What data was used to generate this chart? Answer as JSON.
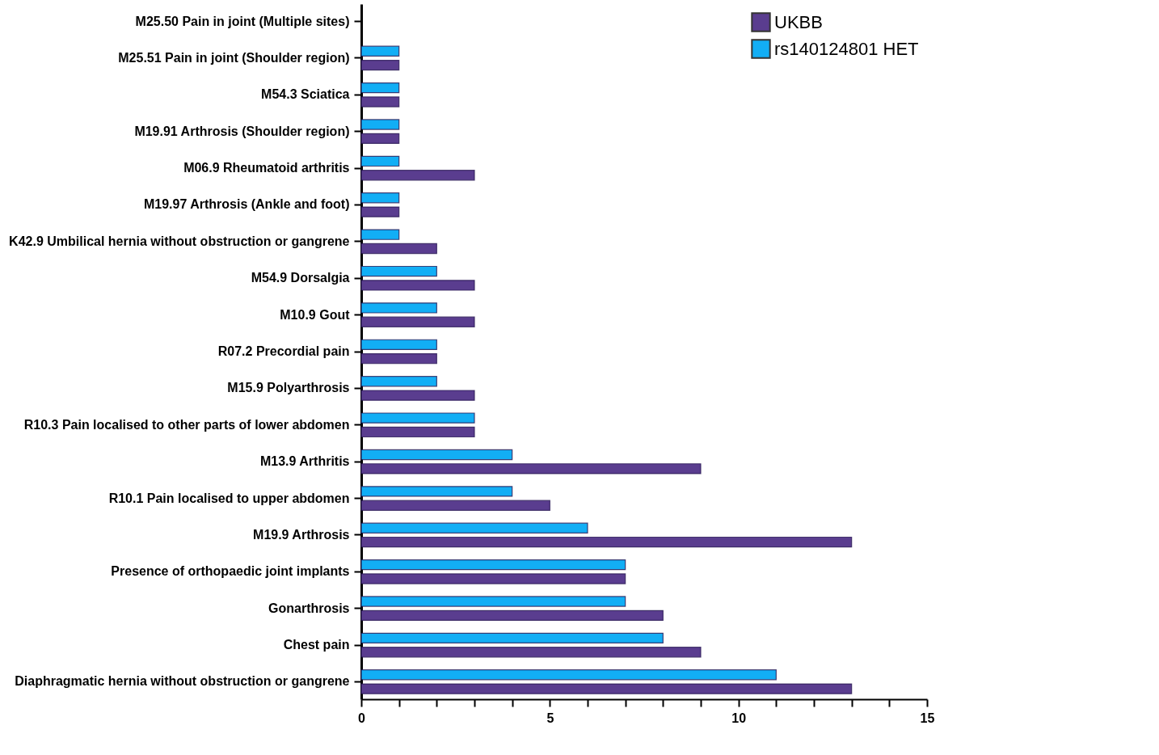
{
  "chart_data": {
    "type": "bar",
    "orientation": "horizontal",
    "categories": [
      "M25.50 Pain in joint (Multiple sites)",
      "M25.51 Pain in joint (Shoulder region)",
      "M54.3 Sciatica",
      "M19.91 Arthrosis (Shoulder region)",
      "M06.9 Rheumatoid arthritis",
      "M19.97 Arthrosis (Ankle and foot)",
      "K42.9 Umbilical hernia without obstruction or gangrene",
      "M54.9 Dorsalgia",
      "M10.9 Gout",
      "R07.2 Precordial pain",
      "M15.9 Polyarthrosis",
      "R10.3 Pain localised to other parts of lower abdomen",
      "M13.9 Arthritis",
      "R10.1 Pain localised to upper abdomen",
      "M19.9 Arthrosis",
      "Presence of orthopaedic joint implants",
      "Gonarthrosis",
      "Chest pain",
      "Diaphragmatic hernia without obstruction or gangrene"
    ],
    "series": [
      {
        "name": "UKBB",
        "color": "#5a3d8f",
        "values": [
          null,
          1,
          1,
          1,
          3,
          1,
          2,
          3,
          3,
          2,
          3,
          3,
          9,
          5,
          13,
          7,
          8,
          9,
          13
        ]
      },
      {
        "name": "rs140124801 HET",
        "color": "#12aef5",
        "values": [
          null,
          1,
          1,
          1,
          1,
          1,
          1,
          2,
          2,
          2,
          2,
          3,
          4,
          4,
          6,
          7,
          7,
          8,
          11
        ]
      }
    ],
    "xlim": [
      0,
      15
    ],
    "xticks": [
      0,
      {
        "value": 1,
        "label": null
      },
      {
        "value": 2,
        "label": null
      },
      {
        "value": 3,
        "label": null
      },
      {
        "value": 4,
        "label": null
      },
      5,
      {
        "value": 6,
        "label": null
      },
      {
        "value": 7,
        "label": null
      },
      {
        "value": 8,
        "label": null
      },
      {
        "value": 9,
        "label": null
      },
      10,
      {
        "value": 11,
        "label": null
      },
      {
        "value": 12,
        "label": null
      },
      {
        "value": 13,
        "label": null
      },
      {
        "value": 14,
        "label": null
      },
      15
    ],
    "grid": false,
    "legend": "top right"
  }
}
